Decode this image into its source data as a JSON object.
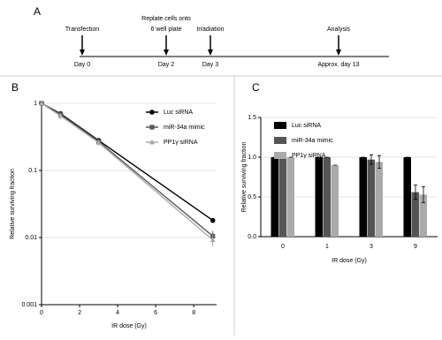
{
  "timeline": {
    "label": "A",
    "events": [
      {
        "label": [
          "Transfection"
        ],
        "day": "Day 0"
      },
      {
        "label": [
          "Replate cells onto",
          "6 well plate"
        ],
        "day": "Day 2"
      },
      {
        "label": [
          "Irradiation"
        ],
        "day": "Day 3"
      },
      {
        "label": [
          "Analysis"
        ],
        "day": "Approx. day 13"
      }
    ]
  },
  "chart_data": [
    {
      "type": "line",
      "panel_label": "B",
      "x_label": "IR dose (Gy)",
      "y_label": "Relative surviving fraction",
      "x": [
        0,
        1,
        3,
        9
      ],
      "xlim": [
        0,
        9.2
      ],
      "xticks": [
        0,
        2,
        4,
        6,
        8
      ],
      "ylim": [
        0.001,
        1
      ],
      "yticks": [
        0.001,
        0.01,
        0.1,
        1
      ],
      "log_y": true,
      "grid": true,
      "legend": "upper right",
      "series": [
        {
          "name": "Luc siRNA",
          "color": "#000000",
          "marker": "circle",
          "values": [
            1,
            0.7,
            0.28,
            0.018
          ],
          "errors": [
            0,
            0.04,
            0.015,
            0.001
          ]
        },
        {
          "name": "miR-34a mimic",
          "color": "#555555",
          "marker": "square",
          "values": [
            1,
            0.68,
            0.27,
            0.0105
          ],
          "errors": [
            0,
            0.05,
            0.02,
            0.002
          ]
        },
        {
          "name": "PP1γ siRNA",
          "color": "#aaaaaa",
          "marker": "triangle",
          "values": [
            1,
            0.65,
            0.26,
            0.0092
          ],
          "errors": [
            0,
            0.06,
            0.025,
            0.0018
          ]
        }
      ]
    },
    {
      "type": "bar",
      "panel_label": "C",
      "x_label": "IR dose (Gy)",
      "y_label": "Relative surviving fraction",
      "categories": [
        "0",
        "1",
        "3",
        "9"
      ],
      "ylim": [
        0,
        1.5
      ],
      "yticks": [
        {
          "value": 0,
          "label": "0.0"
        },
        0.5,
        {
          "value": 1,
          "label": "1.0"
        },
        1.5
      ],
      "grid": true,
      "legend": "upper left",
      "series": [
        {
          "name": "Luc siRNA",
          "color": "#000000",
          "values": [
            1,
            1,
            1,
            1
          ],
          "errors": [
            0,
            0,
            0,
            0
          ]
        },
        {
          "name": "miR-34a mimic",
          "color": "#555555",
          "values": [
            1,
            1,
            0.97,
            0.56
          ],
          "errors": [
            0,
            0,
            0.06,
            0.09
          ]
        },
        {
          "name": "PP1γ siRNA",
          "color": "#aaaaaa",
          "values": [
            1,
            0.9,
            0.94,
            0.53
          ],
          "errors": [
            0,
            0,
            0.08,
            0.1
          ]
        }
      ]
    }
  ]
}
